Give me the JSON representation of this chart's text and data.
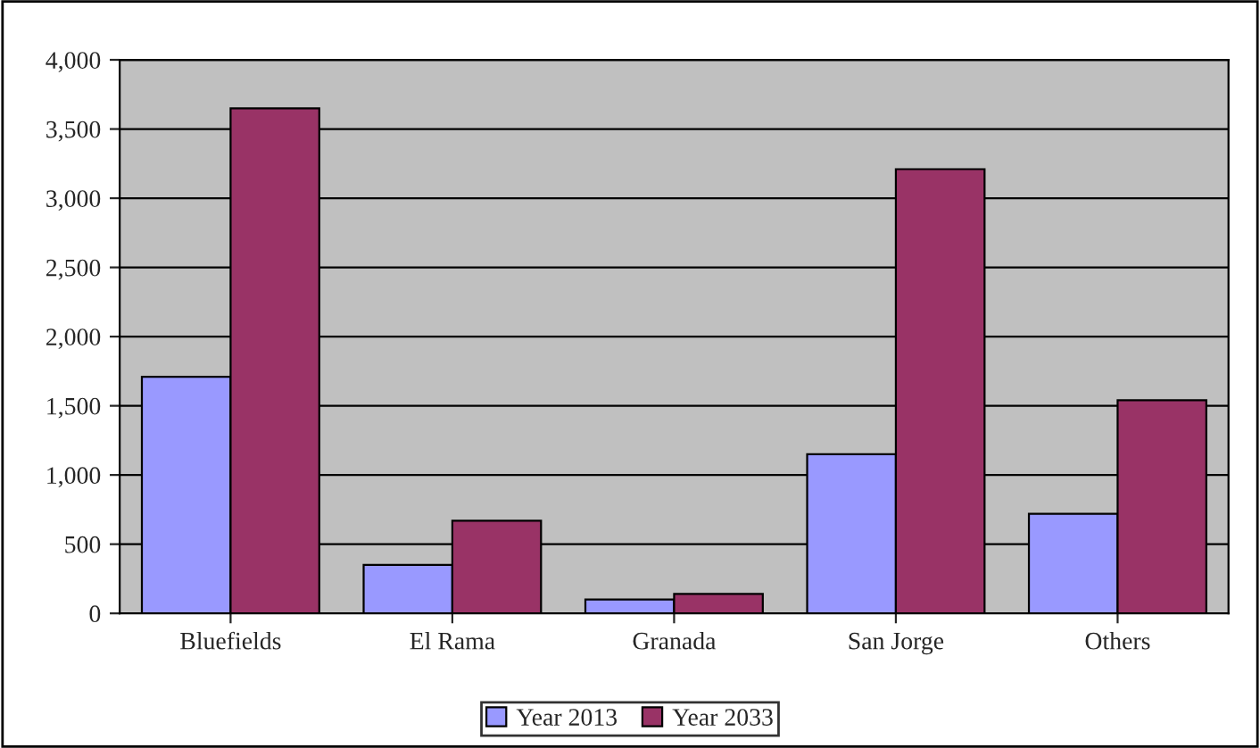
{
  "chart_data": {
    "type": "bar",
    "categories": [
      "Bluefields",
      "El Rama",
      "Granada",
      "San Jorge",
      "Others"
    ],
    "series": [
      {
        "name": "Year 2013",
        "color": "#9999ff",
        "values": [
          1710,
          350,
          100,
          1150,
          720
        ]
      },
      {
        "name": "Year 2033",
        "color": "#993366",
        "values": [
          3650,
          670,
          140,
          3210,
          1540
        ]
      }
    ],
    "ylim": [
      0,
      4000
    ],
    "yticks": [
      {
        "value": 0,
        "label": "0"
      },
      {
        "value": 500,
        "label": "500"
      },
      {
        "value": 1000,
        "label": "1,000"
      },
      {
        "value": 1500,
        "label": "1,500"
      },
      {
        "value": 2000,
        "label": "2,000"
      },
      {
        "value": 2500,
        "label": "2,500"
      },
      {
        "value": 3000,
        "label": "3,000"
      },
      {
        "value": 3500,
        "label": "3,500"
      },
      {
        "value": 4000,
        "label": "4,000"
      }
    ],
    "grid": "y",
    "legend": "bottom"
  }
}
